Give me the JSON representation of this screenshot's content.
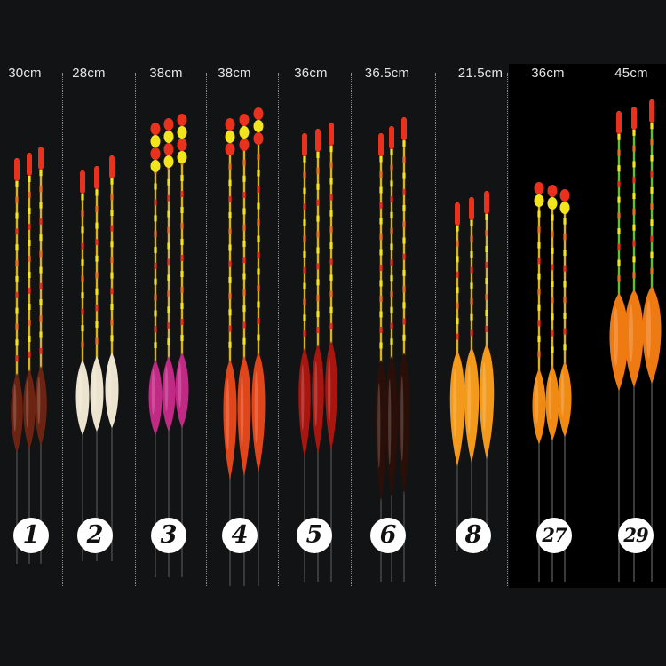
{
  "groups": [
    {
      "length": "30cm",
      "number": "1"
    },
    {
      "length": "28cm",
      "number": "2"
    },
    {
      "length": "38cm",
      "number": "3"
    },
    {
      "length": "38cm",
      "number": "4"
    },
    {
      "length": "36cm",
      "number": "5"
    },
    {
      "length": "36.5cm",
      "number": "6"
    },
    {
      "length": "21.5cm",
      "number": "8"
    },
    {
      "length": "36cm",
      "number": "27"
    },
    {
      "length": "45cm",
      "number": "29"
    }
  ],
  "colors": {
    "background": "#121314",
    "panel": "#000000",
    "tip_red": "#e8321e",
    "tip_yellow": "#f2e51e",
    "tip_green": "#5fc22a"
  }
}
